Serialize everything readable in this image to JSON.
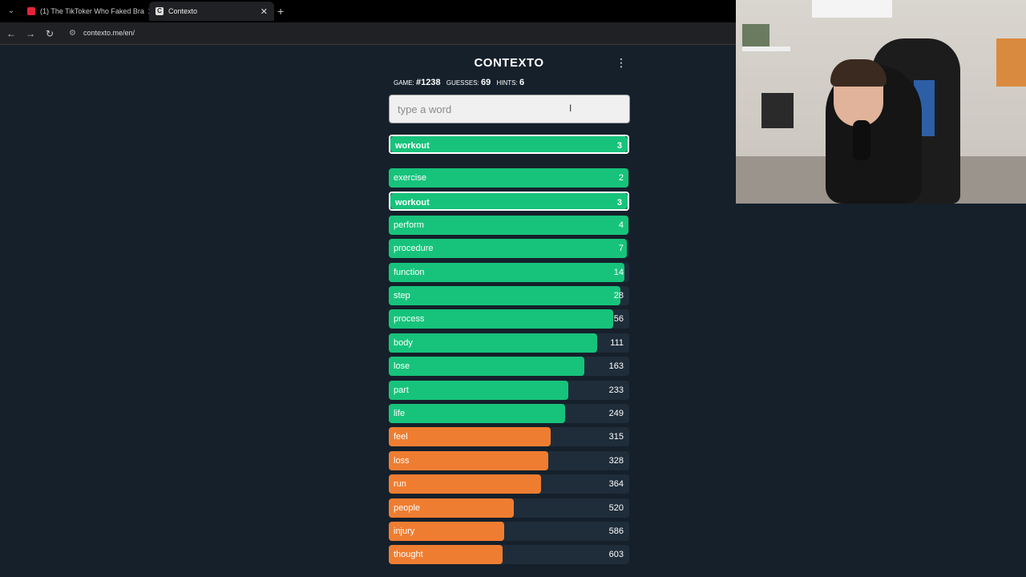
{
  "browser": {
    "tabs": [
      {
        "title": "(1) The TikToker Who Faked Bra",
        "active": false
      },
      {
        "title": "Contexto",
        "active": true
      }
    ],
    "url": "contexto.me/en/"
  },
  "game": {
    "title": "CONTEXTO",
    "stats": {
      "game_label": "GAME:",
      "game_value": "#1238",
      "guesses_label": "GUESSES:",
      "guesses_value": "69",
      "hints_label": "HINTS:",
      "hints_value": "6"
    },
    "input_placeholder": "type a word",
    "last_guess": {
      "word": "workout",
      "rank": 3
    },
    "guesses": [
      {
        "word": "exercise",
        "rank": 2,
        "level": 0.997,
        "color": "green"
      },
      {
        "word": "workout",
        "rank": 3,
        "level": 1.0,
        "color": "green",
        "highlight": true
      },
      {
        "word": "perform",
        "rank": 4,
        "level": 0.997,
        "color": "green"
      },
      {
        "word": "procedure",
        "rank": 7,
        "level": 0.99,
        "color": "green"
      },
      {
        "word": "function",
        "rank": 14,
        "level": 0.98,
        "color": "green"
      },
      {
        "word": "step",
        "rank": 28,
        "level": 0.963,
        "color": "green"
      },
      {
        "word": "process",
        "rank": 56,
        "level": 0.933,
        "color": "green"
      },
      {
        "word": "body",
        "rank": 111,
        "level": 0.867,
        "color": "green"
      },
      {
        "word": "lose",
        "rank": 163,
        "level": 0.813,
        "color": "green"
      },
      {
        "word": "part",
        "rank": 233,
        "level": 0.747,
        "color": "green"
      },
      {
        "word": "life",
        "rank": 249,
        "level": 0.733,
        "color": "green"
      },
      {
        "word": "feel",
        "rank": 315,
        "level": 0.673,
        "color": "orange"
      },
      {
        "word": "loss",
        "rank": 328,
        "level": 0.663,
        "color": "orange"
      },
      {
        "word": "run",
        "rank": 364,
        "level": 0.633,
        "color": "orange"
      },
      {
        "word": "people",
        "rank": 520,
        "level": 0.52,
        "color": "orange"
      },
      {
        "word": "injury",
        "rank": 586,
        "level": 0.48,
        "color": "orange"
      },
      {
        "word": "thought",
        "rank": 603,
        "level": 0.473,
        "color": "orange"
      }
    ]
  },
  "colors": {
    "green": "#17c37b",
    "orange": "#ef7d31",
    "background": "#15202b"
  }
}
